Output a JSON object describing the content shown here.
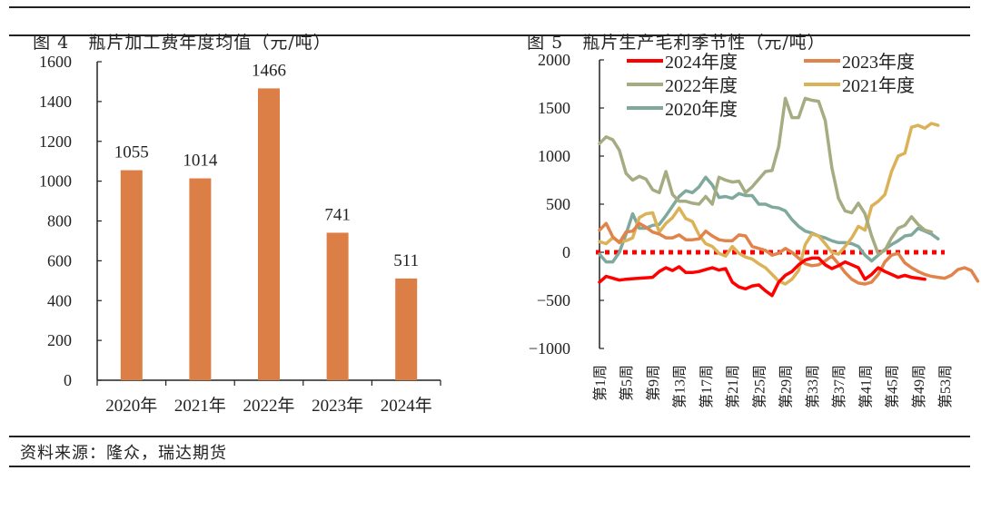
{
  "page": {
    "left_figure_label": "图 4",
    "left_figure_title": "瓶片加工费年度均值（元/吨）",
    "right_figure_label": "图 5",
    "right_figure_title": "瓶片生产毛利季节性（元/吨）",
    "source": "资料来源：隆众，瑞达期货"
  },
  "chart_data": [
    {
      "type": "bar",
      "title": "瓶片加工费年度均值（元/吨）",
      "categories": [
        "2020年",
        "2021年",
        "2022年",
        "2023年",
        "2024年"
      ],
      "values": [
        1055,
        1014,
        1466,
        741,
        511
      ],
      "data_labels": [
        "1055",
        "1014",
        "1466",
        "741",
        "511"
      ],
      "ylim": [
        0,
        1600
      ],
      "yticks": [
        0,
        200,
        400,
        600,
        800,
        1000,
        1200,
        1400,
        1600
      ],
      "xlabel": "",
      "ylabel": "",
      "color": "#DC7F47",
      "grid": false
    },
    {
      "type": "line",
      "title": "瓶片生产毛利季节性（元/吨）",
      "ylim": [
        -1000,
        2000
      ],
      "yticks": [
        -1000,
        -500,
        0,
        500,
        1000,
        1500,
        2000
      ],
      "xtick_labels": [
        "第1周",
        "第5周",
        "第9周",
        "第13周",
        "第17周",
        "第21周",
        "第25周",
        "第29周",
        "第33周",
        "第37周",
        "第41周",
        "第45周",
        "第49周",
        "第53周"
      ],
      "xtick_weeks": [
        1,
        5,
        9,
        13,
        17,
        21,
        25,
        29,
        33,
        37,
        41,
        45,
        49,
        53
      ],
      "x_range": [
        1,
        53
      ],
      "legend_position": "top",
      "grid": false,
      "zero_line": {
        "value": 0,
        "color": "#FF0000",
        "style": "dotted"
      },
      "series": [
        {
          "name": "2024年度",
          "color": "#FF0000",
          "values": [
            -310,
            -250,
            -270,
            -290,
            -280,
            -275,
            -270,
            -265,
            -260,
            -200,
            -160,
            -190,
            -150,
            -210,
            -210,
            -200,
            -180,
            -160,
            -185,
            -170,
            -310,
            -360,
            -380,
            -350,
            -340,
            -400,
            -450,
            -310,
            -240,
            -200,
            -130,
            -80,
            -60,
            -60,
            -130,
            -170,
            -140,
            -100,
            -130,
            -160,
            -280,
            -230,
            -160,
            -200,
            -230,
            -260,
            -240,
            -260,
            -270,
            -280
          ]
        },
        {
          "name": "2023年度",
          "color": "#E0844C",
          "values": [
            230,
            300,
            160,
            100,
            210,
            220,
            300,
            260,
            210,
            190,
            150,
            150,
            180,
            130,
            130,
            140,
            220,
            170,
            130,
            120,
            120,
            180,
            170,
            60,
            40,
            20,
            -30,
            -10,
            40,
            0,
            -60,
            -120,
            -140,
            -130,
            -90,
            -40,
            -120,
            -210,
            -280,
            -320,
            -330,
            -310,
            -230,
            -100,
            -30,
            -10,
            -110,
            -160,
            -200,
            -230,
            -250,
            -260,
            -270,
            -240,
            -180,
            -160,
            -190,
            -300
          ]
        },
        {
          "name": "2022年度",
          "color": "#A6AC82",
          "values": [
            1130,
            1200,
            1170,
            1060,
            820,
            750,
            790,
            760,
            650,
            620,
            840,
            600,
            530,
            530,
            510,
            500,
            580,
            500,
            780,
            750,
            730,
            740,
            620,
            680,
            760,
            840,
            850,
            1100,
            1600,
            1400,
            1400,
            1600,
            1580,
            1570,
            1370,
            880,
            560,
            430,
            410,
            510,
            400,
            170,
            -20,
            20,
            150,
            250,
            280,
            370,
            290,
            230,
            210
          ]
        },
        {
          "name": "2021年度",
          "color": "#DBB258",
          "values": [
            110,
            90,
            150,
            110,
            120,
            150,
            360,
            400,
            410,
            210,
            300,
            360,
            460,
            350,
            320,
            180,
            90,
            60,
            -10,
            -40,
            60,
            -10,
            -50,
            -70,
            -120,
            -160,
            -230,
            -300,
            -330,
            -280,
            -190,
            80,
            190,
            170,
            90,
            0,
            -20,
            60,
            150,
            270,
            230,
            480,
            530,
            600,
            840,
            1000,
            1030,
            1300,
            1320,
            1290,
            1340,
            1320
          ]
        },
        {
          "name": "2020年度",
          "color": "#7FA99D",
          "values": [
            -20,
            -100,
            -100,
            0,
            190,
            400,
            250,
            250,
            280,
            290,
            380,
            480,
            580,
            640,
            620,
            680,
            780,
            700,
            570,
            580,
            560,
            610,
            590,
            590,
            500,
            500,
            470,
            460,
            430,
            340,
            270,
            220,
            200,
            170,
            150,
            120,
            100,
            100,
            90,
            60,
            -30,
            -90,
            -30,
            30,
            80,
            120,
            170,
            180,
            250,
            220,
            190,
            140
          ]
        }
      ]
    }
  ]
}
